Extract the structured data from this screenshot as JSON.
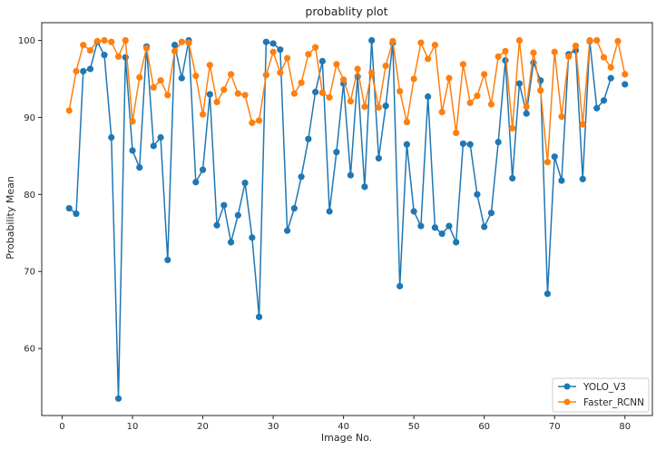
{
  "chart_data": {
    "type": "line",
    "title": "probablity plot",
    "xlabel": "Image No.",
    "ylabel": "Probability Mean",
    "xlim": [
      -2.9,
      83.9
    ],
    "ylim": [
      51.3,
      102.3
    ],
    "xticks": [
      0,
      10,
      20,
      30,
      40,
      50,
      60,
      70,
      80
    ],
    "yticks": [
      60,
      70,
      80,
      90,
      100
    ],
    "grid": false,
    "legend_position": "lower-right",
    "x": [
      1,
      2,
      3,
      4,
      5,
      6,
      7,
      8,
      9,
      10,
      11,
      12,
      13,
      14,
      15,
      16,
      17,
      18,
      19,
      20,
      21,
      22,
      23,
      24,
      25,
      26,
      27,
      28,
      29,
      30,
      31,
      32,
      33,
      34,
      35,
      36,
      37,
      38,
      39,
      40,
      41,
      42,
      43,
      44,
      45,
      46,
      47,
      48,
      49,
      50,
      51,
      52,
      53,
      54,
      55,
      56,
      57,
      58,
      59,
      60,
      61,
      62,
      63,
      64,
      65,
      66,
      67,
      68,
      69,
      70,
      71,
      72,
      73,
      74,
      75,
      76,
      77,
      78,
      79,
      80
    ],
    "series": [
      {
        "name": "YOLO_V3",
        "color": "#1f77b4",
        "values": [
          78.2,
          77.5,
          96.0,
          96.3,
          99.8,
          98.1,
          87.4,
          53.5,
          97.8,
          85.7,
          83.5,
          99.2,
          86.3,
          87.4,
          71.5,
          99.4,
          95.1,
          100.0,
          81.6,
          83.2,
          93.0,
          76.0,
          78.6,
          73.8,
          77.3,
          81.5,
          74.4,
          64.1,
          99.8,
          99.6,
          98.8,
          75.3,
          78.2,
          82.3,
          87.2,
          93.3,
          97.3,
          77.8,
          85.5,
          94.4,
          82.5,
          95.3,
          81.0,
          100.0,
          84.7,
          91.5,
          99.7,
          68.1,
          86.5,
          77.8,
          75.9,
          92.7,
          75.7,
          74.9,
          75.9,
          73.8,
          86.6,
          86.5,
          80.0,
          75.8,
          77.6,
          86.8,
          97.4,
          82.1,
          94.4,
          90.5,
          97.1,
          94.8,
          67.1,
          84.9,
          81.8,
          98.2,
          98.7,
          82.0,
          99.9,
          91.2,
          92.2,
          95.1,
          null,
          94.3
        ]
      },
      {
        "name": "Faster_RCNN",
        "color": "#ff7f0e",
        "values": [
          90.9,
          96.0,
          99.4,
          98.7,
          99.9,
          100.0,
          99.8,
          97.9,
          100.0,
          89.5,
          95.2,
          99.0,
          93.9,
          94.8,
          92.9,
          98.6,
          99.8,
          99.7,
          95.4,
          90.4,
          96.8,
          92.0,
          93.6,
          95.6,
          93.1,
          92.9,
          89.3,
          89.6,
          95.5,
          98.5,
          95.8,
          97.7,
          93.1,
          94.5,
          98.2,
          99.1,
          93.2,
          92.6,
          96.9,
          94.9,
          92.1,
          96.3,
          91.4,
          95.8,
          91.3,
          96.7,
          99.9,
          93.4,
          89.4,
          95.0,
          99.7,
          97.6,
          99.4,
          90.7,
          95.1,
          88.0,
          96.9,
          91.9,
          92.8,
          95.6,
          91.7,
          97.9,
          98.6,
          88.6,
          100.0,
          91.4,
          98.4,
          93.5,
          84.2,
          98.5,
          90.1,
          97.9,
          99.3,
          89.1,
          100.0,
          100.0,
          97.8,
          96.5,
          99.9,
          95.6
        ]
      }
    ]
  }
}
